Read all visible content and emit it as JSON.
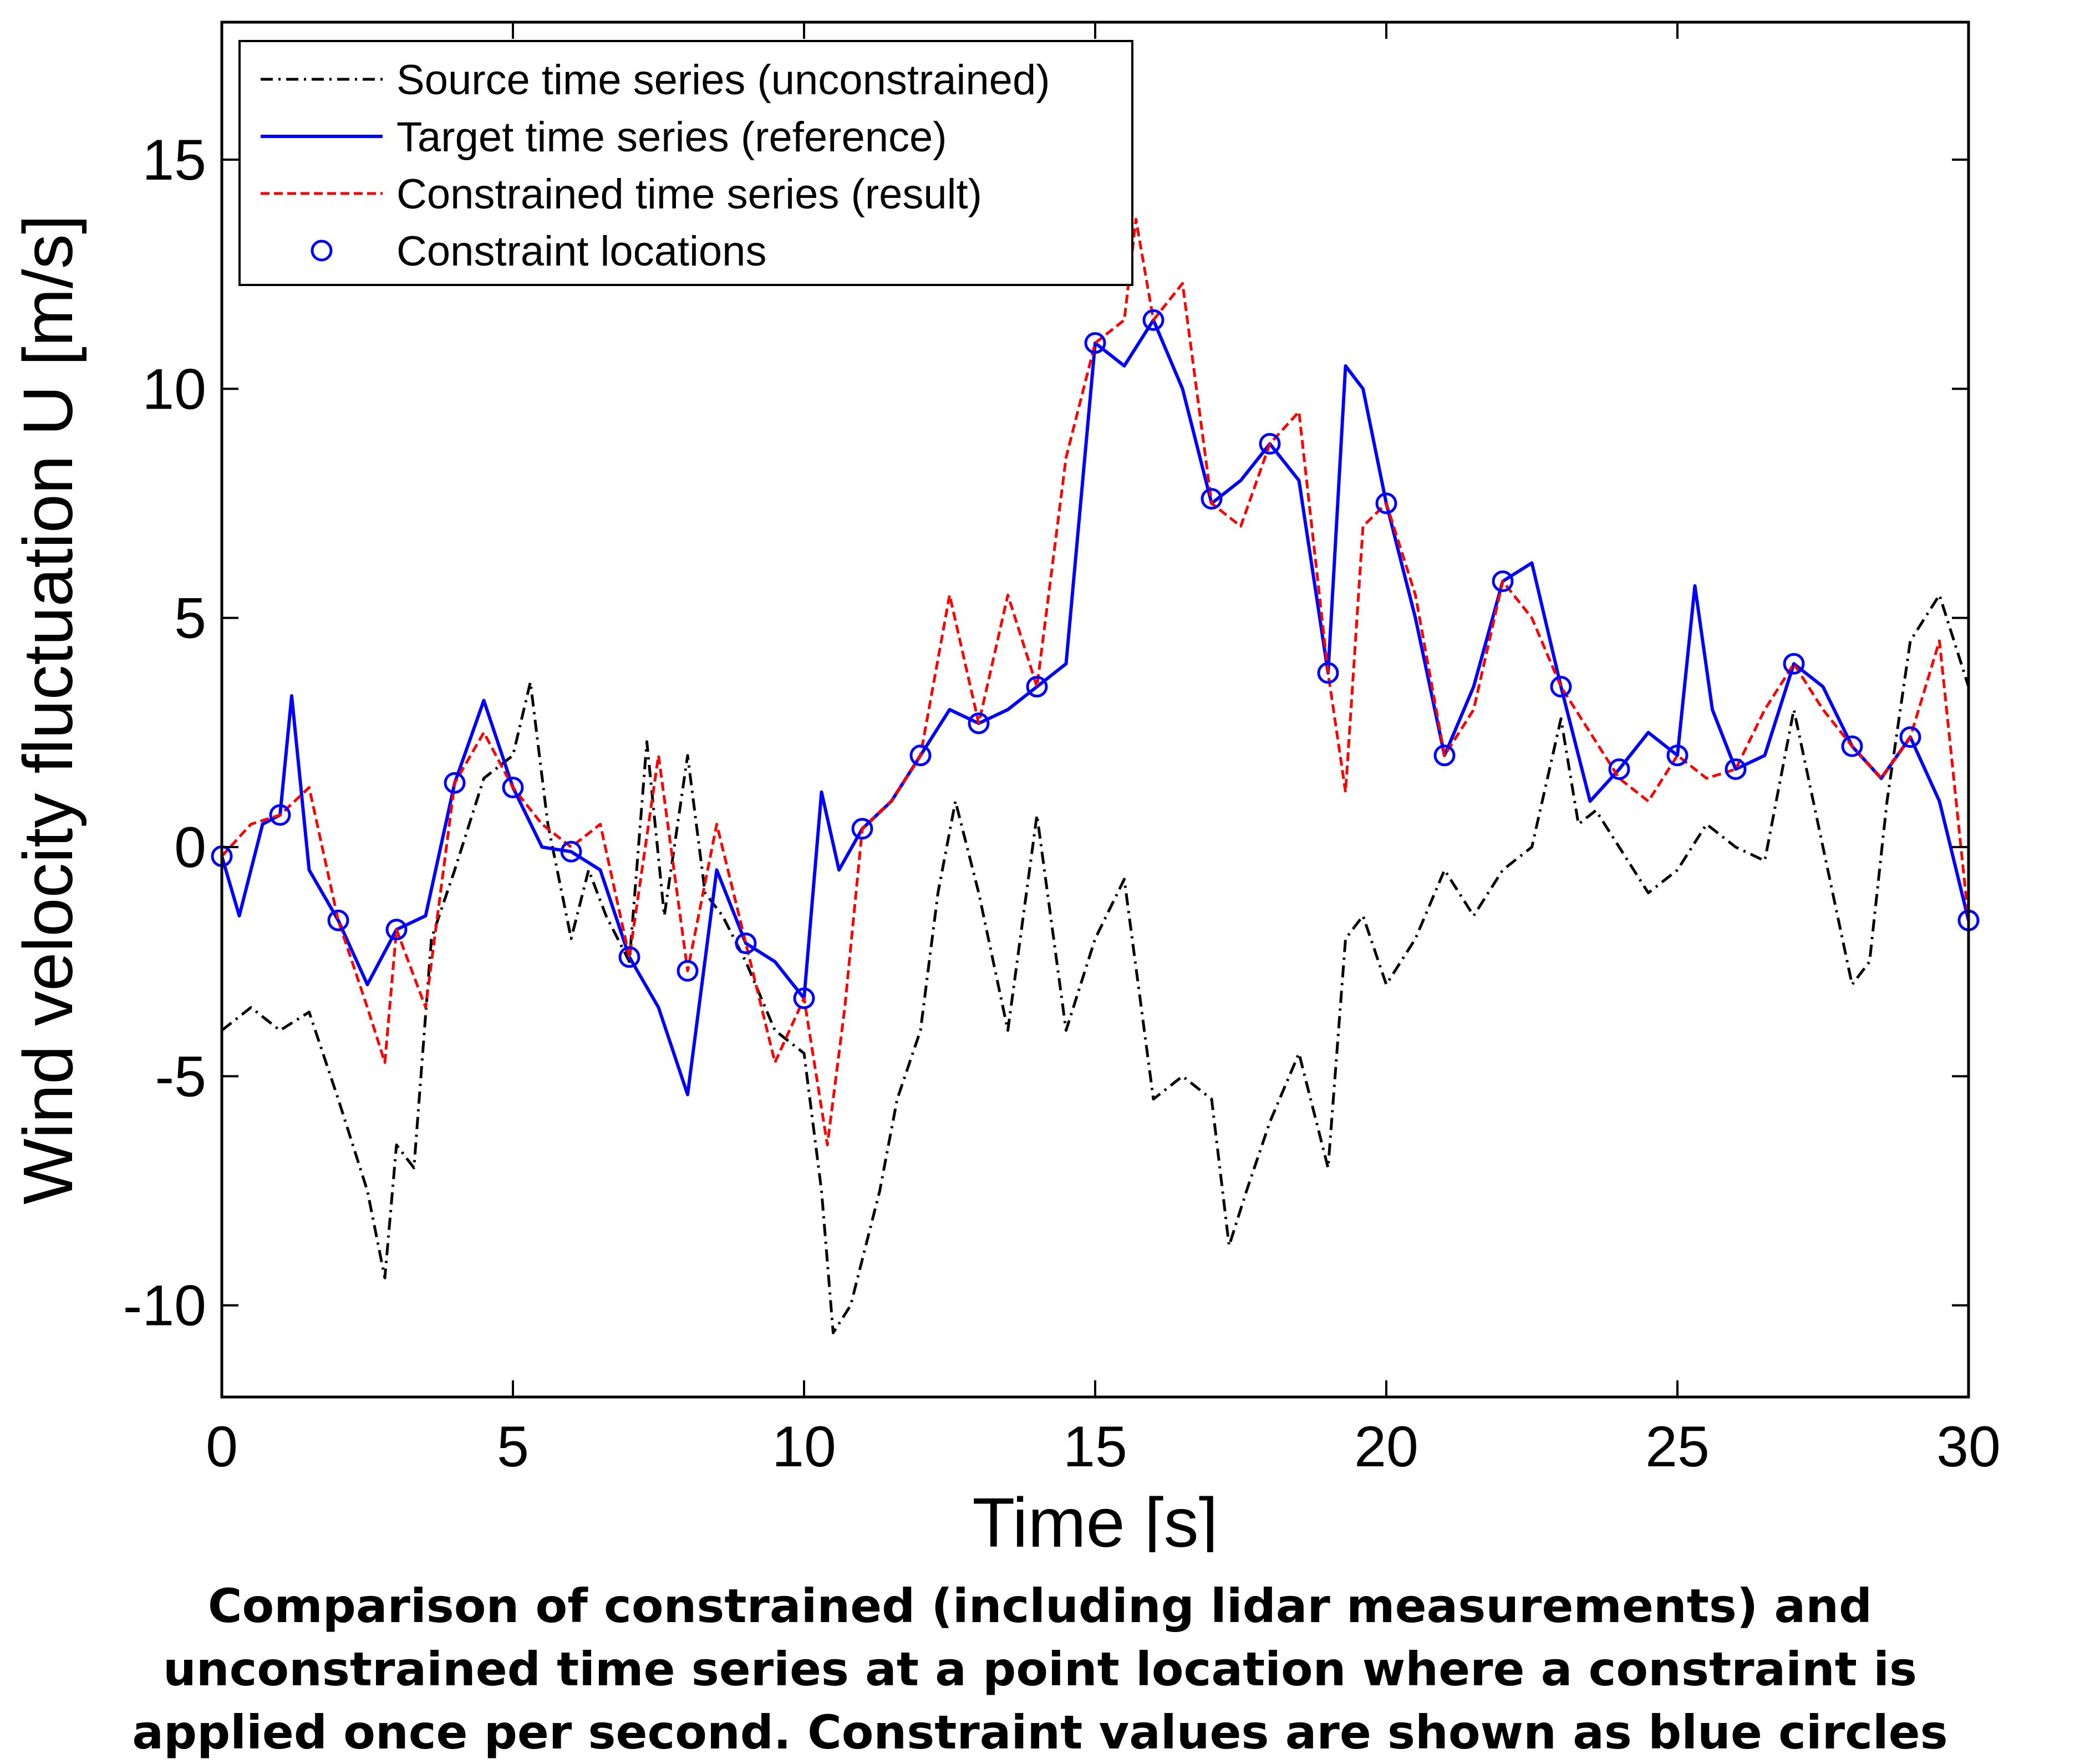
{
  "chart_data": {
    "type": "line",
    "xlabel": "Time [s]",
    "ylabel": "Wind velocity fluctuation U [m/s]",
    "xlim": [
      0,
      30
    ],
    "ylim": [
      -12,
      18
    ],
    "xticks": [
      "0",
      "5",
      "10",
      "15",
      "20",
      "25",
      "30"
    ],
    "yticks": [
      "-10",
      "-5",
      "0",
      "5",
      "10",
      "15"
    ],
    "grid": false,
    "legend_position": "top-left",
    "series": [
      {
        "name": "Source time series (unconstrained)",
        "color": "#000000",
        "style": "dash-dot",
        "x": [
          0,
          0.5,
          1,
          1.5,
          2,
          2.5,
          2.8,
          3,
          3.3,
          3.6,
          4,
          4.5,
          5,
          5.3,
          5.6,
          6,
          6.3,
          6.6,
          7,
          7.3,
          7.6,
          8,
          8.3,
          8.6,
          9,
          9.5,
          10,
          10.3,
          10.5,
          10.8,
          11,
          11.3,
          11.6,
          12,
          12.3,
          12.6,
          13,
          13.5,
          14,
          14.5,
          15,
          15.5,
          16,
          16.5,
          17,
          17.3,
          17.6,
          18,
          18.5,
          19,
          19.3,
          19.6,
          20,
          20.5,
          21,
          21.5,
          22,
          22.5,
          23,
          23.3,
          23.6,
          24,
          24.5,
          25,
          25.5,
          26,
          26.5,
          27,
          27.5,
          28,
          28.3,
          28.6,
          29,
          29.5,
          30
        ],
        "y": [
          -4,
          -3.5,
          -4,
          -3.6,
          -5.5,
          -7.5,
          -9.4,
          -6.5,
          -7,
          -2,
          -0.5,
          1.5,
          2,
          3.6,
          0.5,
          -2,
          -0.5,
          -1.5,
          -2.5,
          2.3,
          -1.5,
          2,
          -1,
          -1.5,
          -2.5,
          -4,
          -4.5,
          -7.5,
          -10.6,
          -10,
          -9,
          -7.5,
          -5.5,
          -4,
          -1,
          1,
          -1,
          -4,
          0.7,
          -4,
          -2,
          -0.7,
          -5.5,
          -5,
          -5.5,
          -8.7,
          -7.5,
          -6,
          -4.5,
          -7,
          -2,
          -1.5,
          -3,
          -2,
          -0.5,
          -1.5,
          -0.5,
          0,
          2.8,
          0.5,
          0.8,
          0,
          -1,
          -0.5,
          0.5,
          0,
          -0.3,
          3,
          0,
          -3,
          -2.5,
          1,
          4.5,
          5.5,
          3.5
        ]
      },
      {
        "name": "Target time series (reference)",
        "color": "#0000ff",
        "style": "solid",
        "x": [
          0,
          0.3,
          0.7,
          1,
          1.2,
          1.5,
          2,
          2.5,
          3,
          3.5,
          4,
          4.5,
          5,
          5.5,
          6,
          6.5,
          7,
          7.5,
          8,
          8.5,
          9,
          9.5,
          10,
          10.3,
          10.6,
          11,
          11.5,
          12,
          12.5,
          13,
          13.5,
          14,
          14.5,
          15,
          15.5,
          16,
          16.5,
          17,
          17.5,
          18,
          18.5,
          19,
          19.3,
          19.6,
          20,
          20.5,
          21,
          21.5,
          22,
          22.5,
          23,
          23.5,
          24,
          24.5,
          25,
          25.3,
          25.6,
          26,
          26.5,
          27,
          27.5,
          28,
          28.5,
          29,
          29.5,
          30
        ],
        "y": [
          -0.2,
          -1.5,
          0.5,
          0.7,
          3.3,
          -0.5,
          -1.6,
          -3,
          -1.8,
          -1.5,
          1.4,
          3.2,
          1.3,
          0,
          -0.1,
          -0.5,
          -2.4,
          -3.5,
          -5.4,
          -0.5,
          -2.1,
          -2.5,
          -3.3,
          1.2,
          -0.5,
          0.4,
          1,
          2,
          3,
          2.7,
          3,
          3.5,
          4,
          11,
          10.5,
          11.5,
          10,
          7.5,
          8,
          8.8,
          8,
          3.8,
          10.5,
          10,
          7.5,
          5,
          2,
          3.5,
          5.8,
          6.2,
          3.5,
          1,
          1.7,
          2.5,
          2,
          5.7,
          3,
          1.7,
          2,
          4,
          3.5,
          2.2,
          1.5,
          2.4,
          1,
          -1.6
        ]
      },
      {
        "name": "Constrained time series (result)",
        "color": "#ff0000",
        "style": "dashed",
        "x": [
          0,
          0.5,
          1,
          1.5,
          2,
          2.5,
          2.8,
          3,
          3.5,
          4,
          4.5,
          5,
          5.5,
          6,
          6.5,
          7,
          7.5,
          8,
          8.5,
          9,
          9.5,
          10,
          10.4,
          10.7,
          11,
          11.5,
          12,
          12.5,
          13,
          13.5,
          14,
          14.5,
          15,
          15.5,
          15.7,
          16,
          16.5,
          17,
          17.5,
          18,
          18.5,
          19,
          19.3,
          19.6,
          20,
          20.5,
          21,
          21.5,
          22,
          22.5,
          23,
          23.5,
          24,
          24.5,
          25,
          25.5,
          26,
          26.5,
          27,
          27.5,
          28,
          28.5,
          29,
          29.5,
          30
        ],
        "y": [
          -0.2,
          0.5,
          0.7,
          1.3,
          -1.6,
          -3.5,
          -4.7,
          -1.8,
          -3.5,
          1.4,
          2.5,
          1.3,
          0.5,
          0,
          0.5,
          -2.4,
          2,
          -2.7,
          0.5,
          -2.1,
          -4.7,
          -3.3,
          -6.5,
          -3.5,
          0.4,
          1,
          2,
          5.5,
          2.7,
          5.5,
          3.5,
          8.5,
          11,
          11.5,
          13.7,
          11.5,
          12.3,
          7.5,
          7,
          8.8,
          9.5,
          3.8,
          1.2,
          7,
          7.5,
          5.5,
          2,
          3,
          5.8,
          5,
          3.5,
          2.5,
          1.5,
          1,
          2,
          1.5,
          1.7,
          3,
          4,
          3,
          2.2,
          1.5,
          2.4,
          4.5,
          -1.6
        ]
      },
      {
        "name": "Constraint locations",
        "color": "#0000ff",
        "style": "marker-circle",
        "x": [
          0,
          1,
          2,
          3,
          4,
          5,
          6,
          7,
          8,
          9,
          10,
          11,
          12,
          13,
          14,
          15,
          16,
          17,
          18,
          19,
          20,
          21,
          22,
          23,
          24,
          25,
          26,
          27,
          28,
          29,
          30
        ],
        "y": [
          -0.2,
          0.7,
          -1.6,
          -1.8,
          1.4,
          1.3,
          -0.1,
          -2.4,
          -2.7,
          -2.1,
          -3.3,
          0.4,
          2,
          2.7,
          3.5,
          11,
          11.5,
          7.6,
          8.8,
          3.8,
          7.5,
          2,
          5.8,
          3.5,
          1.7,
          2,
          1.7,
          4,
          2.2,
          2.4,
          -1.6
        ]
      }
    ]
  },
  "caption": {
    "line1": "Comparison of constrained (including lidar measurements) and",
    "line2": "unconstrained time series at a point location where a constraint is",
    "line3": "applied once per second. Constraint values are shown as blue circles"
  }
}
